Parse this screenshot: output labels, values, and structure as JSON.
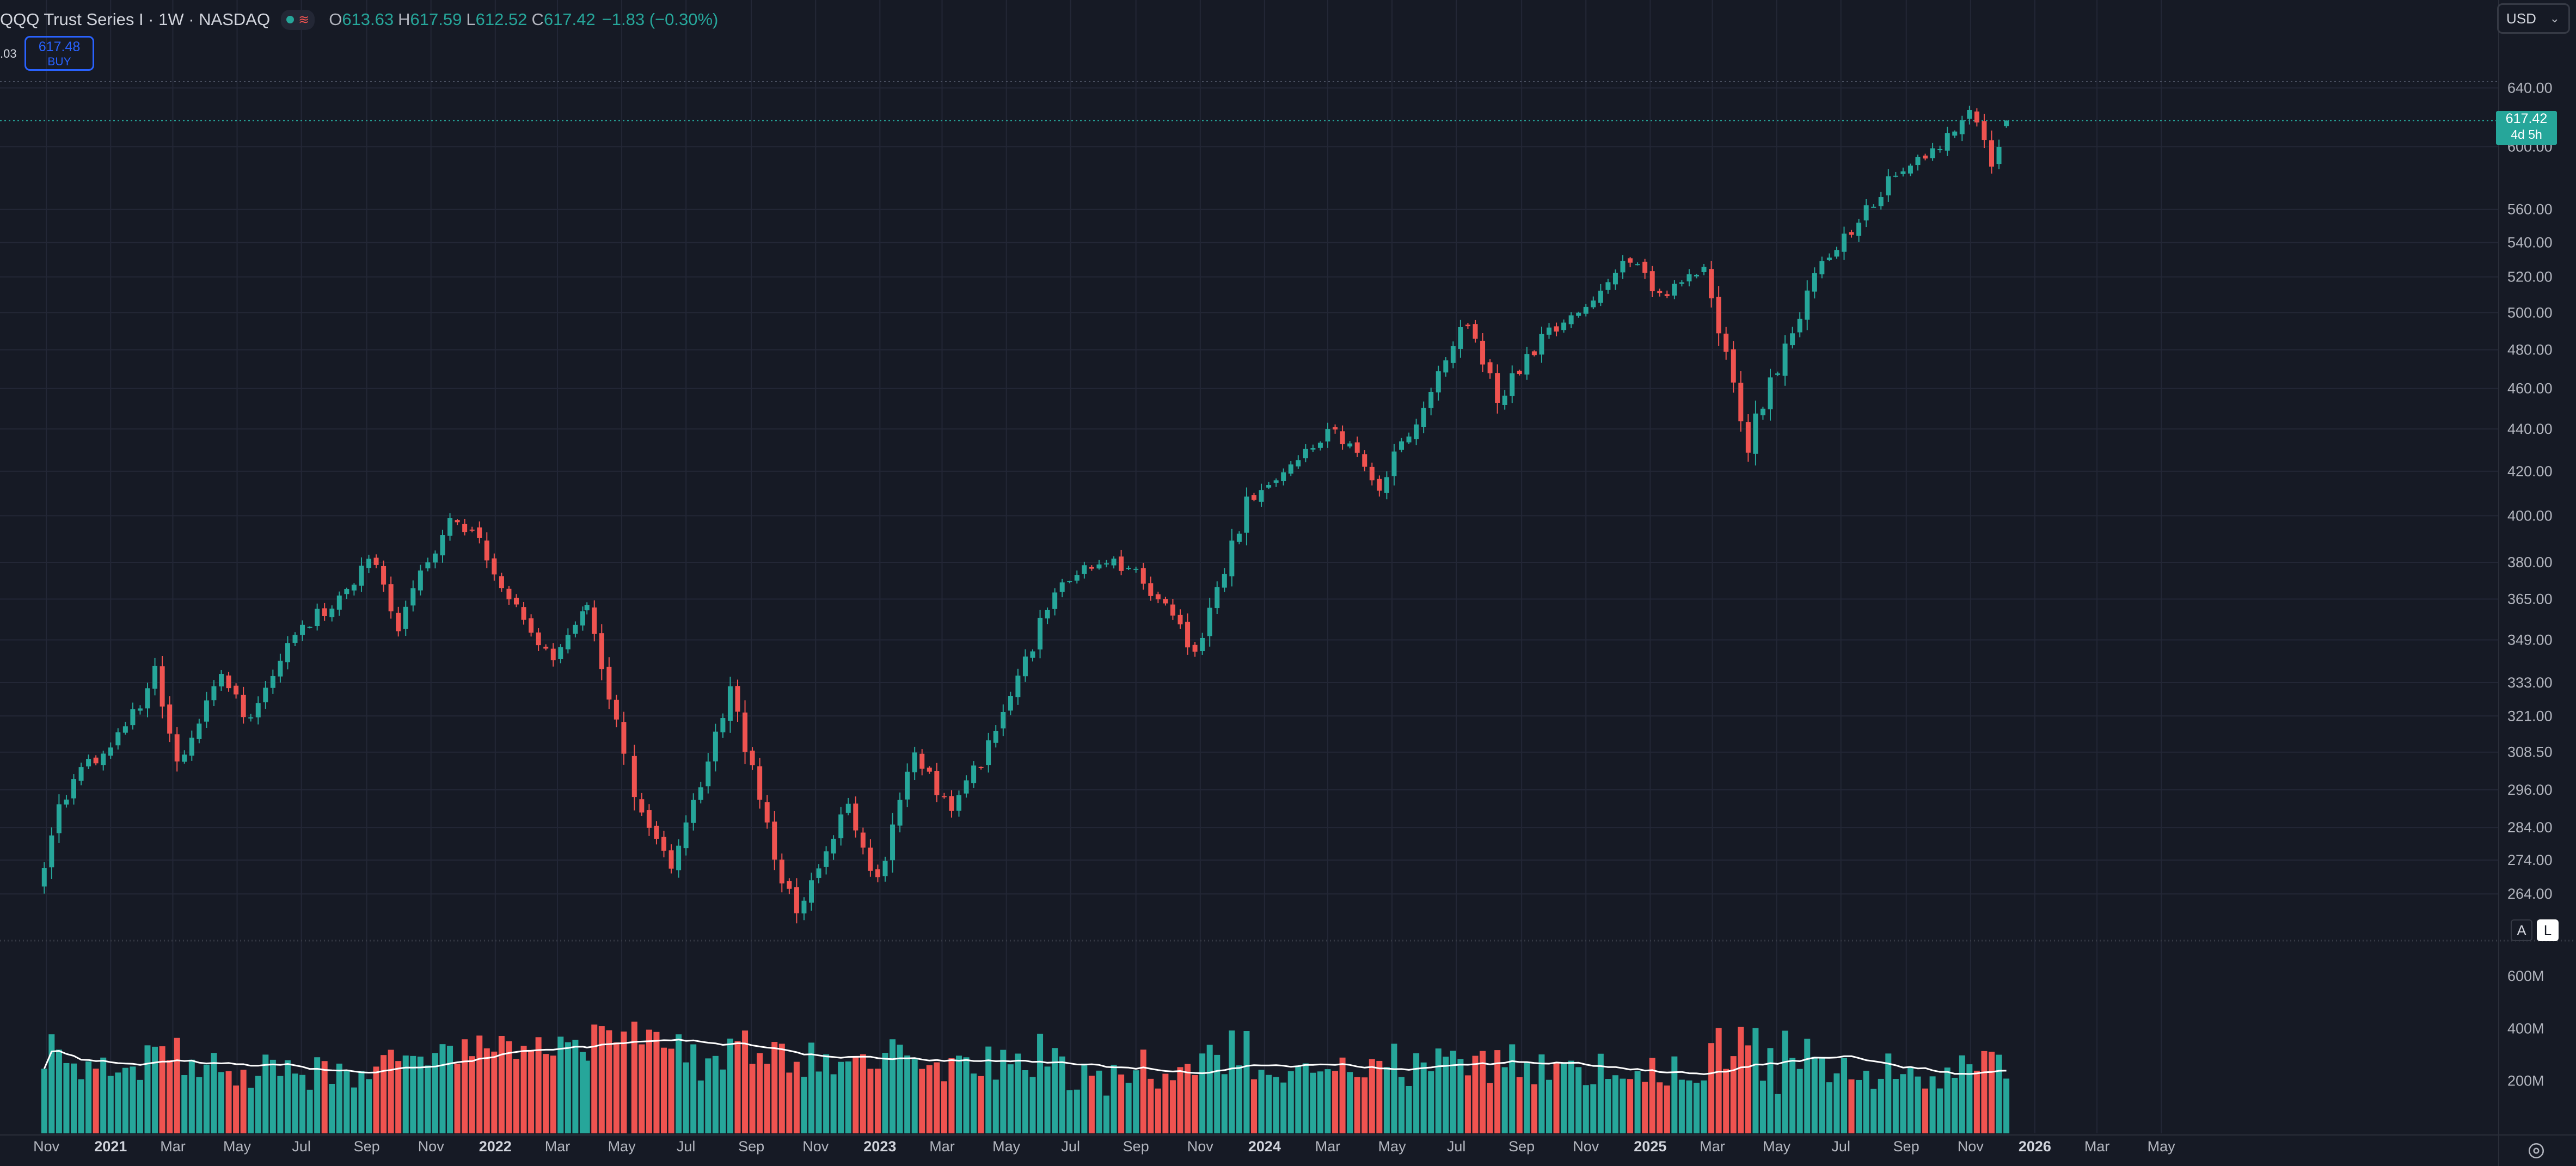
{
  "header": {
    "symbol": "QQQ Trust Series I · 1W · NASDAQ",
    "open_label": "O",
    "open": "613.63",
    "high_label": "H",
    "high": "617.59",
    "low_label": "L",
    "low": "612.52",
    "close_label": "C",
    "close": "617.42",
    "change": "−1.83 (−0.30%)",
    "indicator_glyph": "≋"
  },
  "left_value": ".03",
  "buy_button": {
    "price": "617.48",
    "label": "BUY"
  },
  "currency": {
    "value": "USD",
    "chevron_icon": "chevron-down-icon"
  },
  "last_price": {
    "value": "617.42",
    "countdown": "4d 5h"
  },
  "price_axis": {
    "labels": [
      "640.00",
      "600.00",
      "560.00",
      "540.00",
      "520.00",
      "500.00",
      "480.00",
      "460.00",
      "440.00",
      "420.00",
      "400.00",
      "380.00",
      "365.00",
      "349.00",
      "333.00",
      "321.00",
      "308.50",
      "296.00",
      "284.00",
      "274.00",
      "264.00"
    ],
    "ticks": [
      640,
      600,
      560,
      540,
      520,
      500,
      480,
      460,
      440,
      420,
      400,
      380,
      365,
      349,
      333,
      321,
      308.5,
      296,
      284,
      274,
      264
    ],
    "scale": "log"
  },
  "volume_axis": {
    "labels": [
      "600M",
      "400M",
      "200M"
    ],
    "ticks": [
      600,
      400,
      200
    ]
  },
  "time_axis": {
    "labels": [
      "Nov",
      "2021",
      "Mar",
      "May",
      "Jul",
      "Sep",
      "Nov",
      "2022",
      "Mar",
      "May",
      "Jul",
      "Sep",
      "Nov",
      "2023",
      "Mar",
      "May",
      "Jul",
      "Sep",
      "Nov",
      "2024",
      "Mar",
      "May",
      "Jul",
      "Sep",
      "Nov",
      "2025",
      "Mar",
      "May",
      "Jul",
      "Sep",
      "Nov",
      "2026",
      "Mar",
      "May"
    ],
    "bold": [
      "2021",
      "2022",
      "2023",
      "2024",
      "2025",
      "2026"
    ]
  },
  "scale_buttons": {
    "auto": "A",
    "log": "L"
  },
  "settings_icon": "gear-icon",
  "colors": {
    "up": "#26a69a",
    "down": "#ef5350",
    "background": "#161a25",
    "grid": "#232736",
    "ma_line": "#ffffff",
    "accent": "#2962ff"
  },
  "chart_data": {
    "type": "candlestick",
    "interval": "1W",
    "symbol": "QQQ",
    "y_scale": "log",
    "weekly_close_path": [
      {
        "date": "2020-10-30",
        "close": 270
      },
      {
        "date": "2020-11-13",
        "close": 292
      },
      {
        "date": "2020-12-11",
        "close": 305
      },
      {
        "date": "2021-01-15",
        "close": 315
      },
      {
        "date": "2021-02-12",
        "close": 338
      },
      {
        "date": "2021-03-05",
        "close": 305
      },
      {
        "date": "2021-04-16",
        "close": 335
      },
      {
        "date": "2021-05-14",
        "close": 318
      },
      {
        "date": "2021-06-25",
        "close": 352
      },
      {
        "date": "2021-08-13",
        "close": 368
      },
      {
        "date": "2021-09-03",
        "close": 383
      },
      {
        "date": "2021-10-01",
        "close": 355
      },
      {
        "date": "2021-11-19",
        "close": 400
      },
      {
        "date": "2021-12-17",
        "close": 390
      },
      {
        "date": "2022-01-28",
        "close": 355
      },
      {
        "date": "2022-02-25",
        "close": 340
      },
      {
        "date": "2022-03-29",
        "close": 366
      },
      {
        "date": "2022-05-13",
        "close": 295
      },
      {
        "date": "2022-06-17",
        "close": 270
      },
      {
        "date": "2022-08-12",
        "close": 330
      },
      {
        "date": "2022-09-30",
        "close": 268
      },
      {
        "date": "2022-10-14",
        "close": 260
      },
      {
        "date": "2022-12-02",
        "close": 291
      },
      {
        "date": "2022-12-30",
        "close": 267
      },
      {
        "date": "2023-02-03",
        "close": 310
      },
      {
        "date": "2023-03-10",
        "close": 288
      },
      {
        "date": "2023-04-28",
        "close": 320
      },
      {
        "date": "2023-06-16",
        "close": 370
      },
      {
        "date": "2023-07-21",
        "close": 380
      },
      {
        "date": "2023-09-01",
        "close": 377
      },
      {
        "date": "2023-10-27",
        "close": 344
      },
      {
        "date": "2023-12-15",
        "close": 405
      },
      {
        "date": "2024-03-08",
        "close": 439
      },
      {
        "date": "2024-04-19",
        "close": 413
      },
      {
        "date": "2024-07-12",
        "close": 497
      },
      {
        "date": "2024-08-09",
        "close": 455
      },
      {
        "date": "2024-09-20",
        "close": 485
      },
      {
        "date": "2024-12-13",
        "close": 530
      },
      {
        "date": "2025-01-10",
        "close": 510
      },
      {
        "date": "2025-02-21",
        "close": 525
      },
      {
        "date": "2025-03-14",
        "close": 478
      },
      {
        "date": "2025-04-04",
        "close": 425
      },
      {
        "date": "2025-04-11",
        "close": 445
      },
      {
        "date": "2025-06-06",
        "close": 520
      },
      {
        "date": "2025-08-15",
        "close": 577
      },
      {
        "date": "2025-09-26",
        "close": 595
      },
      {
        "date": "2025-10-31",
        "close": 629
      },
      {
        "date": "2025-11-21",
        "close": 591
      },
      {
        "date": "2025-12-05",
        "close": 617.42
      }
    ],
    "last_bar": {
      "open": 613.63,
      "high": 617.59,
      "low": 612.52,
      "close": 617.42
    },
    "volume_range_M": [
      0,
      700
    ],
    "volume_ma": "moving average line (white)"
  }
}
